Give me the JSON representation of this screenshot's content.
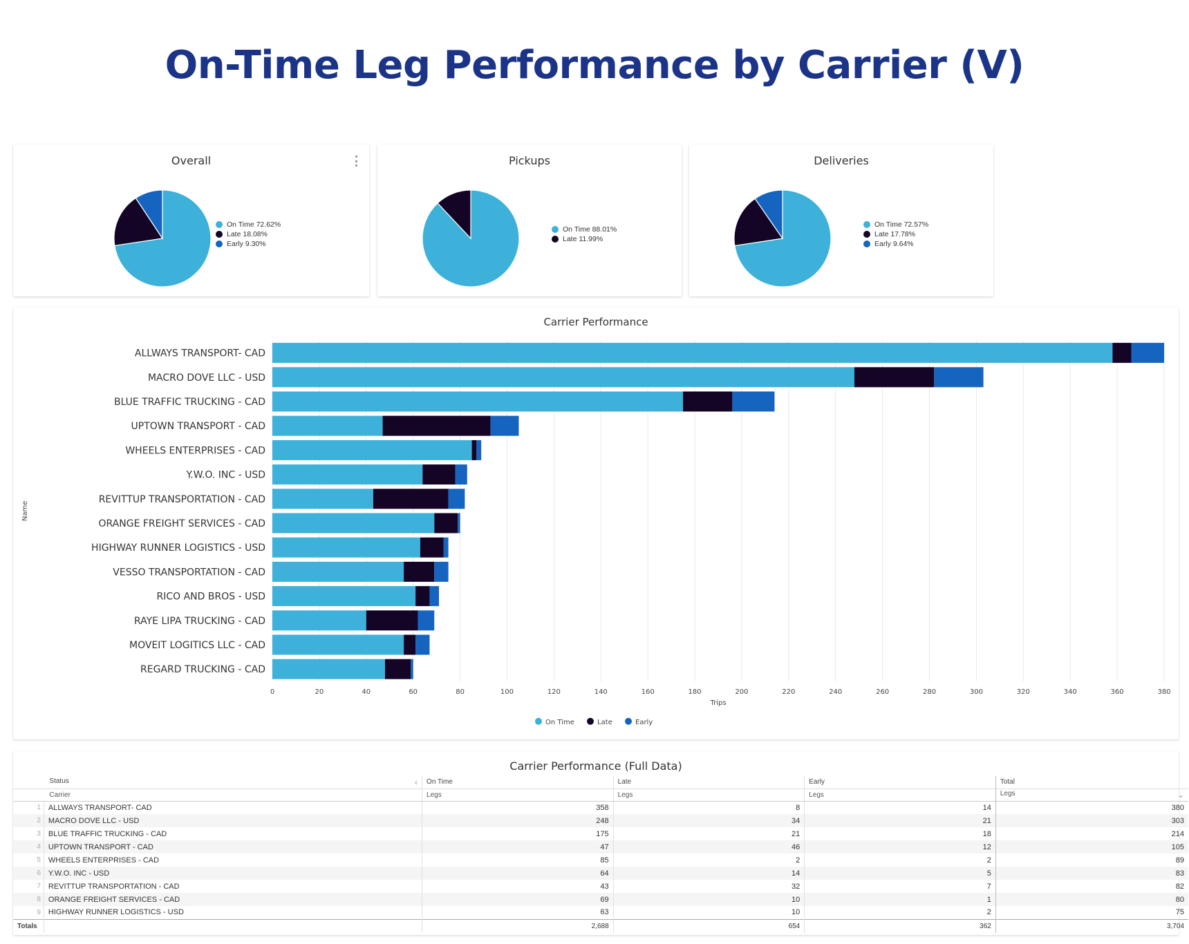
{
  "title": "On-Time Leg Performance by Carrier (V)",
  "colors": {
    "on_time": "#3db1d9",
    "late": "#140426",
    "early": "#1565c0"
  },
  "pies": [
    {
      "title": "Overall",
      "chart_data": {
        "type": "pie",
        "labels": [
          "On Time",
          "Late",
          "Early"
        ],
        "values": [
          72.62,
          18.08,
          9.3
        ]
      },
      "legend": [
        "On Time 72.62%",
        "Late 18.08%",
        "Early 9.30%"
      ]
    },
    {
      "title": "Pickups",
      "chart_data": {
        "type": "pie",
        "labels": [
          "On Time",
          "Late"
        ],
        "values": [
          88.01,
          11.99
        ]
      },
      "legend": [
        "On Time 88.01%",
        "Late 11.99%"
      ]
    },
    {
      "title": "Deliveries",
      "chart_data": {
        "type": "pie",
        "labels": [
          "On Time",
          "Late",
          "Early"
        ],
        "values": [
          72.57,
          17.78,
          9.64
        ]
      },
      "legend": [
        "On Time 72.57%",
        "Late 17.78%",
        "Early 9.64%"
      ]
    }
  ],
  "chart_data": {
    "type": "bar",
    "orientation": "horizontal",
    "stacked": true,
    "title": "Carrier Performance",
    "xlabel": "Trips",
    "ylabel": "Name",
    "xlim": [
      0,
      380
    ],
    "xticks": [
      0,
      20,
      40,
      60,
      80,
      100,
      120,
      140,
      160,
      180,
      200,
      220,
      240,
      260,
      280,
      300,
      320,
      340,
      360,
      380
    ],
    "categories": [
      "ALLWAYS TRANSPORT- CAD",
      "MACRO DOVE LLC - USD",
      "BLUE TRAFFIC TRUCKING - CAD",
      "UPTOWN TRANSPORT - CAD",
      "WHEELS ENTERPRISES - CAD",
      "Y.W.O. INC - USD",
      "REVITTUP TRANSPORTATION - CAD",
      "ORANGE FREIGHT SERVICES - CAD",
      "HIGHWAY RUNNER LOGISTICS - USD",
      "VESSO TRANSPORTATION - CAD",
      "RICO AND BROS - USD",
      "RAYE LIPA TRUCKING - CAD",
      "MOVEIT LOGITICS LLC - CAD",
      "REGARD TRUCKING - CAD"
    ],
    "series": [
      {
        "name": "On Time",
        "values": [
          358,
          248,
          175,
          47,
          85,
          64,
          43,
          69,
          63,
          56,
          61,
          40,
          56,
          48
        ]
      },
      {
        "name": "Late",
        "values": [
          8,
          34,
          21,
          46,
          2,
          14,
          32,
          10,
          10,
          13,
          6,
          22,
          5,
          11
        ]
      },
      {
        "name": "Early",
        "values": [
          14,
          21,
          18,
          12,
          2,
          5,
          7,
          1,
          2,
          6,
          4,
          7,
          6,
          1
        ]
      }
    ],
    "legend_position": "bottom",
    "grid": true
  },
  "table": {
    "title": "Carrier Performance (Full Data)",
    "status_label": "Status",
    "carrier_label": "Carrier",
    "groups": [
      "On Time",
      "Late",
      "Early",
      "Total"
    ],
    "metric_label": "Legs",
    "rows": [
      {
        "idx": "1",
        "carrier": "ALLWAYS TRANSPORT- CAD",
        "on_time": "358",
        "late": "8",
        "early": "14",
        "total": "380"
      },
      {
        "idx": "2",
        "carrier": "MACRO DOVE LLC - USD",
        "on_time": "248",
        "late": "34",
        "early": "21",
        "total": "303"
      },
      {
        "idx": "3",
        "carrier": "BLUE TRAFFIC TRUCKING - CAD",
        "on_time": "175",
        "late": "21",
        "early": "18",
        "total": "214"
      },
      {
        "idx": "4",
        "carrier": "UPTOWN TRANSPORT - CAD",
        "on_time": "47",
        "late": "46",
        "early": "12",
        "total": "105"
      },
      {
        "idx": "5",
        "carrier": "WHEELS ENTERPRISES - CAD",
        "on_time": "85",
        "late": "2",
        "early": "2",
        "total": "89"
      },
      {
        "idx": "6",
        "carrier": "Y.W.O. INC - USD",
        "on_time": "64",
        "late": "14",
        "early": "5",
        "total": "83"
      },
      {
        "idx": "7",
        "carrier": "REVITTUP TRANSPORTATION - CAD",
        "on_time": "43",
        "late": "32",
        "early": "7",
        "total": "82"
      },
      {
        "idx": "8",
        "carrier": "ORANGE FREIGHT SERVICES - CAD",
        "on_time": "69",
        "late": "10",
        "early": "1",
        "total": "80"
      },
      {
        "idx": "9",
        "carrier": "HIGHWAY RUNNER LOGISTICS - USD",
        "on_time": "63",
        "late": "10",
        "early": "2",
        "total": "75"
      }
    ],
    "totals": {
      "label": "Totals",
      "on_time": "2,688",
      "late": "654",
      "early": "362",
      "total": "3,704"
    }
  }
}
